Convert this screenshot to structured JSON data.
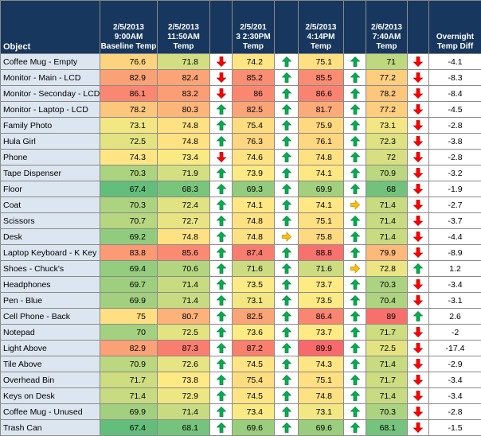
{
  "table": {
    "object_header": "Object",
    "headers": [
      [
        "2/5/2013",
        "9:00AM",
        "Baseline Temp"
      ],
      [
        "2/5/2013",
        "11:50AM",
        "Temp"
      ],
      [
        "2/5/201",
        "3 2:30PM",
        "Temp"
      ],
      [
        "2/5/2013",
        "4:14PM",
        "Temp"
      ],
      [
        "2/6/2013",
        "7:40AM",
        "Temp"
      ],
      [
        "Overnight",
        "Temp Diff"
      ]
    ],
    "rows": [
      [
        "Coffee Mug - Empty",
        76.6,
        71.8,
        74.2,
        75.1,
        71,
        -4.1
      ],
      [
        "Monitor - Main - LCD",
        82.9,
        82.4,
        85.2,
        85.5,
        77.2,
        -8.3
      ],
      [
        "Monitor - Seconday - LCD",
        86.1,
        83.2,
        86,
        86.6,
        78.2,
        -8.4
      ],
      [
        "Monitor - Laptop - LCD",
        78.2,
        80.3,
        82.5,
        81.7,
        77.2,
        -4.5
      ],
      [
        "Family Photo",
        73.1,
        74.8,
        75.4,
        75.9,
        73.1,
        -2.8
      ],
      [
        "Hula Girl",
        72.5,
        74.8,
        76.3,
        76.1,
        72.3,
        -3.8
      ],
      [
        "Phone",
        74.3,
        73.4,
        74.6,
        74.8,
        72,
        -2.8
      ],
      [
        "Tape Dispenser",
        70.3,
        71.9,
        73.9,
        74.1,
        70.9,
        -3.2
      ],
      [
        "Floor",
        67.4,
        68.3,
        69.3,
        69.9,
        68,
        -1.9
      ],
      [
        "Coat",
        70.3,
        72.4,
        74.1,
        74.1,
        71.4,
        -2.7
      ],
      [
        "Scissors",
        70.7,
        72.7,
        74.8,
        75.1,
        71.4,
        -3.7
      ],
      [
        "Desk",
        69.2,
        74.8,
        74.8,
        75.8,
        71.4,
        -4.4
      ],
      [
        "Laptop Keyboard - K Key",
        83.8,
        85.6,
        87.4,
        88.8,
        79.9,
        -8.9
      ],
      [
        "Shoes - Chuck's",
        69.4,
        70.6,
        71.6,
        71.6,
        72.8,
        1.2
      ],
      [
        "Headphones",
        69.7,
        71.4,
        73.5,
        73.7,
        70.3,
        -3.4
      ],
      [
        "Pen - Blue",
        69.9,
        71.4,
        73.1,
        73.5,
        70.4,
        -3.1
      ],
      [
        "Cell Phone - Back",
        75,
        80.7,
        82.5,
        86.4,
        89,
        2.6
      ],
      [
        "Notepad",
        70,
        72.5,
        73.6,
        73.7,
        71.7,
        -2
      ],
      [
        "Light Above",
        82.9,
        87.3,
        87.2,
        89.9,
        72.5,
        -17.4
      ],
      [
        "Tile Above",
        70.9,
        72.6,
        74.5,
        74.3,
        71.4,
        -2.9
      ],
      [
        "Overhead Bin",
        71.7,
        73.8,
        75.4,
        75.1,
        71.7,
        -3.4
      ],
      [
        "Keys on Desk",
        71.4,
        72.9,
        74.5,
        74.8,
        71.4,
        -3.4
      ],
      [
        "Coffee Mug - Unused",
        69.9,
        71.4,
        73.4,
        73.1,
        70.3,
        -2.8
      ],
      [
        "Trash Can",
        67.4,
        68.1,
        69.6,
        69.6,
        68.1,
        -1.5
      ]
    ]
  }
}
